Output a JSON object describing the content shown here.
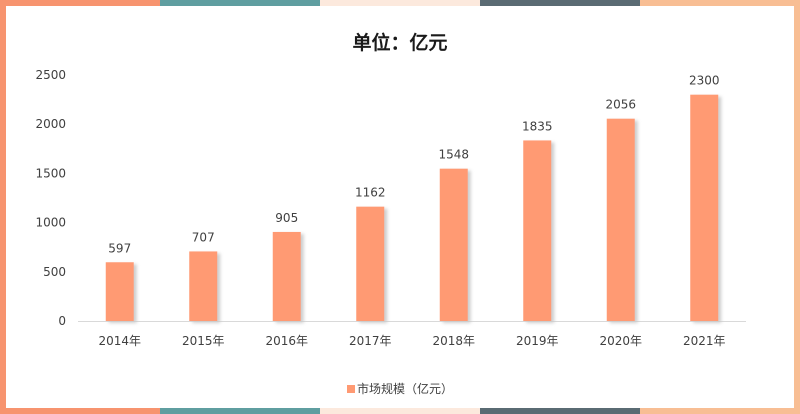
{
  "colors": {
    "bar": "#FF9A73",
    "bar_shadow": "#c9c9c9",
    "frame_left": "#F7946F",
    "frame_right": "#F8BE94",
    "stripes": [
      "#F7946F",
      "#5F9EA0",
      "#FCE9DD",
      "#5A6B73",
      "#F8BE94"
    ]
  },
  "chart_data": {
    "type": "bar",
    "title": "单位：亿元",
    "categories": [
      "2014年",
      "2015年",
      "2016年",
      "2017年",
      "2018年",
      "2019年",
      "2020年",
      "2021年"
    ],
    "series": [
      {
        "name": "市场规模（亿元）",
        "values": [
          597,
          707,
          905,
          1162,
          1548,
          1835,
          2056,
          2300
        ]
      }
    ],
    "yticks": [
      0,
      500,
      1000,
      1500,
      2000,
      2500
    ],
    "ylim": [
      0,
      2500
    ],
    "grid": false,
    "legend_position": "bottom",
    "data_labels": true
  }
}
